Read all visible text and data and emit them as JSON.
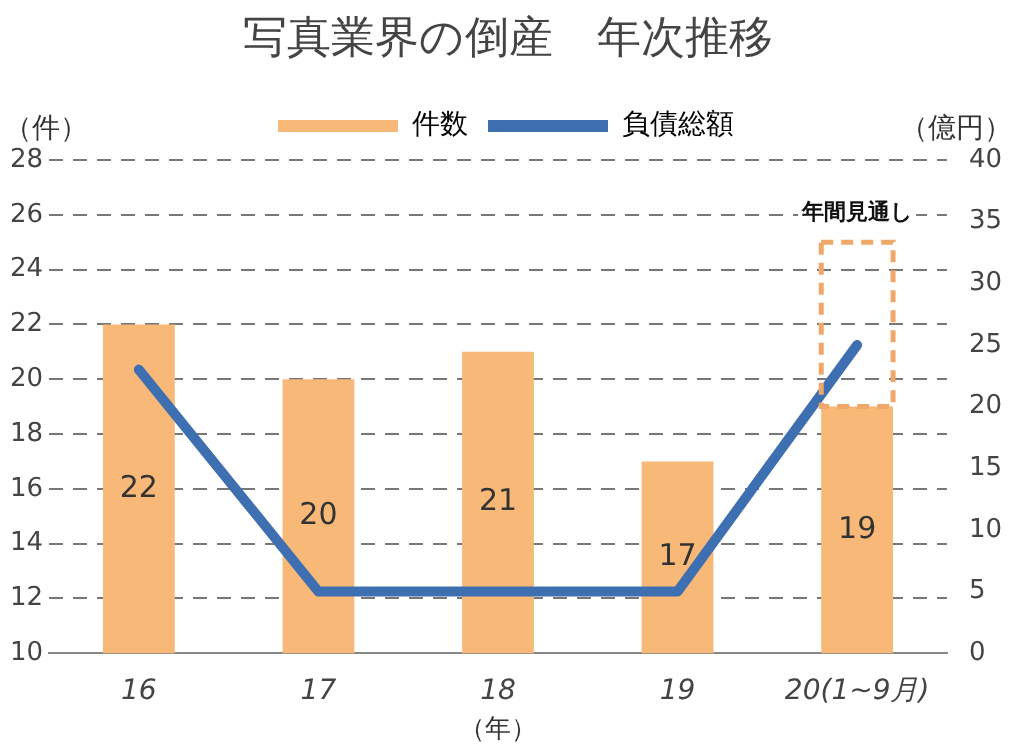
{
  "chart_data": {
    "type": "bar",
    "title": "写真業界の倒産　年次推移",
    "ylabel": "（件）",
    "y2label": "（億円）",
    "xlabel": "（年）",
    "categories": [
      "16",
      "17",
      "18",
      "19",
      "20(1~9月)"
    ],
    "series": [
      {
        "name": "件数",
        "color": "#f8b878",
        "values": [
          22,
          20,
          21,
          17,
          19
        ],
        "value_labels": [
          "22",
          "20",
          "21",
          "17",
          "19"
        ]
      },
      {
        "color": "#f0a868",
        "line_style": "dashed",
        "base": [
          null,
          null,
          null,
          null,
          19
        ],
        "values": [
          null,
          null,
          null,
          null,
          6
        ]
      },
      {
        "name": "負債総額",
        "type": "line",
        "axis": "y2",
        "color": "#3e6fb0",
        "values": [
          23,
          5,
          5,
          5,
          25
        ]
      }
    ],
    "annotations": [
      {
        "text": "年間見通し",
        "x": "20(1~9月)",
        "y": 25
      }
    ],
    "ylim": [
      10,
      28
    ],
    "yticks": [
      10,
      12,
      14,
      16,
      18,
      20,
      22,
      24,
      26,
      28
    ],
    "y2lim": [
      0,
      40
    ],
    "y2ticks": [
      0,
      5,
      10,
      15,
      20,
      25,
      30,
      35,
      40
    ],
    "grid": "y",
    "legend": "top",
    "marker": "none"
  }
}
